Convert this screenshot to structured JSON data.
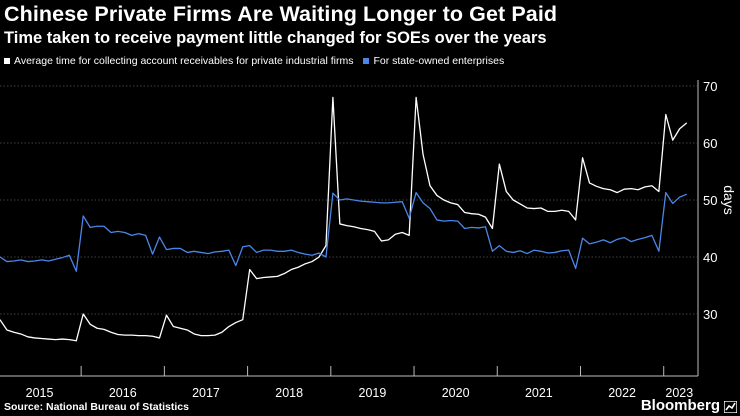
{
  "chart_data": {
    "type": "line",
    "title": "Chinese Private Firms Are Waiting Longer to Get Paid",
    "subtitle": "Time taken to receive payment little changed for SOEs over the years",
    "xlabel": "",
    "ylabel": "days",
    "ylim": [
      24,
      72
    ],
    "yticks": [
      30,
      40,
      50,
      60,
      70
    ],
    "grid": true,
    "legend_placement": "top-left",
    "x_tick_labels": [
      "2015",
      "2016",
      "2017",
      "2018",
      "2019",
      "2020",
      "2021",
      "2022",
      "2023"
    ],
    "x_start": "2015-01",
    "x_end": "2023-05",
    "series": [
      {
        "name": "Average time for collecting account receivables for private industrial firms",
        "color": "#ffffff",
        "values": [
          29,
          27.2,
          26.8,
          26.5,
          26,
          25.8,
          25.7,
          25.6,
          25.5,
          25.6,
          25.5,
          25.3,
          30,
          28.2,
          27.5,
          27.3,
          26.8,
          26.4,
          26.3,
          26.3,
          26.2,
          26.2,
          26.1,
          25.8,
          29.8,
          27.8,
          27.5,
          27.2,
          26.5,
          26.2,
          26.2,
          26.3,
          26.8,
          27.8,
          28.5,
          29,
          37.8,
          36.2,
          36.4,
          36.5,
          36.6,
          37.1,
          37.8,
          38.2,
          38.8,
          39.2,
          40,
          42,
          68,
          45.8,
          45.5,
          45.3,
          45,
          44.8,
          44.5,
          42.8,
          43,
          44,
          44.3,
          43.8,
          68,
          58,
          52.5,
          50.8,
          50,
          49.5,
          49.2,
          47.8,
          47.6,
          47.5,
          47,
          45,
          56.3,
          51.5,
          50,
          49.3,
          48.6,
          48.5,
          48.6,
          48,
          48,
          48.2,
          48,
          46.5,
          57.4,
          53,
          52.4,
          52,
          51.8,
          51.3,
          51.9,
          52,
          51.8,
          52.3,
          52.5,
          51.5,
          65,
          60.5,
          62.5,
          63.5
        ]
      },
      {
        "name": "For state-owned enterprises",
        "color": "#4a86e8",
        "values": [
          40,
          39.2,
          39.3,
          39.5,
          39.2,
          39.3,
          39.5,
          39.3,
          39.6,
          39.9,
          40.3,
          37.5,
          47.2,
          45.2,
          45.4,
          45.4,
          44.3,
          44.5,
          44.3,
          43.8,
          44.1,
          43.8,
          40.5,
          43.5,
          41.3,
          41.5,
          41.5,
          40.8,
          41,
          40.8,
          40.6,
          40.9,
          41,
          41.2,
          38.5,
          41.8,
          42,
          40.8,
          41.2,
          41.2,
          41,
          41,
          41.2,
          40.8,
          40.5,
          40.3,
          40.7,
          40,
          51.2,
          50,
          50.2,
          50,
          49.8,
          49.7,
          49.6,
          49.5,
          49.5,
          49.6,
          49.7,
          46.8,
          51.3,
          49.5,
          48.5,
          46.5,
          46.3,
          46.4,
          46.3,
          45,
          45.2,
          45.1,
          45.3,
          41,
          42,
          41,
          40.8,
          41.1,
          40.6,
          41.2,
          41,
          40.7,
          40.8,
          41.1,
          41.2,
          38,
          43.3,
          42.3,
          42.6,
          43,
          42.5,
          43.1,
          43.4,
          42.7,
          43.1,
          43.4,
          43.8,
          41,
          51.3,
          49.4,
          50.5,
          51
        ]
      }
    ]
  },
  "source": "Source: National Bureau of Statistics",
  "brand": "Bloomberg",
  "brand_icon": "bloomberg-logo-icon",
  "colors": {
    "background": "#000000",
    "grid": "#555555",
    "axis": "#bbbbbb"
  }
}
